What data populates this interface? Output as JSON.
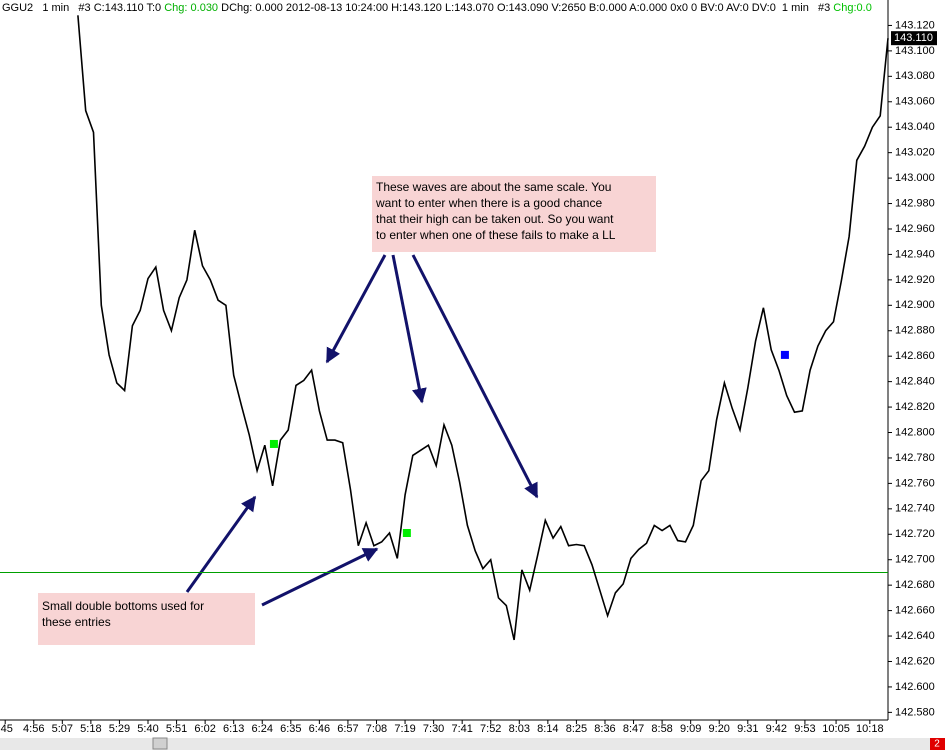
{
  "header": [
    {
      "text": "GGU2   1 min   #3 C:143.110 T:0 ",
      "color": "#000000"
    },
    {
      "text": "Chg: 0.030",
      "color": "#00b000"
    },
    {
      "text": " DChg: 0.000 2012-08-13 10:24:00 H:143.120 L:143.070 O:143.090 V:2650 B:0.000 A:0.000 0x0 0 BV:0 AV:0 DV:0  1 min   #3 ",
      "color": "#000000"
    },
    {
      "text": "Chg:0.0",
      "color": "#00c000"
    }
  ],
  "chart_data": {
    "type": "line",
    "x": [
      313,
      316,
      319,
      322,
      325,
      328,
      331,
      334,
      337,
      340,
      343,
      346,
      349,
      352,
      355,
      358,
      361,
      364,
      367,
      370,
      373,
      376,
      379,
      382,
      385,
      388,
      391,
      394,
      397,
      400,
      403,
      406,
      409,
      412,
      415,
      418,
      421,
      424,
      427,
      430,
      433,
      436,
      439,
      442,
      445,
      448,
      451,
      454,
      457,
      460,
      463,
      466,
      469,
      472,
      475,
      478,
      481,
      484,
      487,
      490,
      493,
      496,
      499,
      502,
      505,
      508,
      511,
      514,
      517,
      520,
      523,
      526,
      529,
      532,
      535,
      538,
      541,
      544,
      547,
      550,
      553,
      556,
      559,
      562,
      565,
      568,
      571,
      574,
      577,
      580,
      583,
      586,
      589,
      592,
      595,
      598,
      601,
      604,
      607,
      610,
      613,
      616,
      619,
      622,
      625
    ],
    "series": [
      {
        "color": "#000000",
        "values": [
          143.128,
          143.053,
          143.036,
          142.9,
          142.861,
          142.839,
          142.833,
          142.884,
          142.896,
          142.921,
          142.93,
          142.896,
          142.88,
          142.906,
          142.92,
          142.959,
          142.931,
          142.92,
          142.904,
          142.9,
          142.845,
          142.821,
          142.798,
          142.77,
          142.79,
          142.758,
          142.794,
          142.802,
          142.837,
          142.841,
          142.849,
          142.817,
          142.794,
          142.794,
          142.792,
          142.755,
          142.711,
          142.729,
          142.711,
          142.714,
          142.721,
          142.701,
          142.751,
          142.782,
          142.786,
          142.79,
          142.774,
          142.806,
          142.79,
          142.761,
          142.727,
          142.707,
          142.693,
          142.7,
          142.67,
          142.664,
          142.637,
          142.692,
          142.676,
          142.703,
          142.731,
          142.717,
          142.726,
          142.711,
          142.712,
          142.711,
          142.696,
          142.676,
          142.656,
          142.674,
          142.681,
          142.701,
          142.708,
          142.713,
          142.727,
          142.723,
          142.727,
          142.715,
          142.714,
          142.727,
          142.762,
          142.77,
          142.81,
          142.839,
          142.819,
          142.802,
          142.835,
          142.872,
          142.898,
          142.865,
          142.849,
          142.829,
          142.816,
          142.817,
          142.849,
          142.868,
          142.88,
          142.887,
          142.919,
          142.954,
          143.014,
          143.025,
          143.04,
          143.049,
          143.11
        ]
      }
    ],
    "markers": [
      {
        "x": 388.5,
        "y": 142.791,
        "color": "#00ee00"
      },
      {
        "x": 439.7,
        "y": 142.721,
        "color": "#00ee00"
      },
      {
        "x": 585.3,
        "y": 142.861,
        "color": "#0000ff"
      }
    ],
    "hline": {
      "value": 142.69,
      "color": "#00a000"
    },
    "last_price": {
      "value": 143.11,
      "label": "143.110"
    },
    "xlim": [
      283,
      625
    ],
    "ylim": [
      142.574,
      143.14
    ],
    "xticks": [
      {
        "value": 285,
        "label": ":45"
      },
      {
        "value": 296,
        "label": "4:56"
      },
      {
        "value": 307,
        "label": "5:07"
      },
      {
        "value": 318,
        "label": "5:18"
      },
      {
        "value": 329,
        "label": "5:29"
      },
      {
        "value": 340,
        "label": "5:40"
      },
      {
        "value": 351,
        "label": "5:51"
      },
      {
        "value": 362,
        "label": "6:02"
      },
      {
        "value": 373,
        "label": "6:13"
      },
      {
        "value": 384,
        "label": "6:24"
      },
      {
        "value": 395,
        "label": "6:35"
      },
      {
        "value": 406,
        "label": "6:46"
      },
      {
        "value": 417,
        "label": "6:57"
      },
      {
        "value": 428,
        "label": "7:08"
      },
      {
        "value": 439,
        "label": "7:19"
      },
      {
        "value": 450,
        "label": "7:30"
      },
      {
        "value": 461,
        "label": "7:41"
      },
      {
        "value": 472,
        "label": "7:52"
      },
      {
        "value": 483,
        "label": "8:03"
      },
      {
        "value": 494,
        "label": "8:14"
      },
      {
        "value": 505,
        "label": "8:25"
      },
      {
        "value": 516,
        "label": "8:36"
      },
      {
        "value": 527,
        "label": "8:47"
      },
      {
        "value": 538,
        "label": "8:58"
      },
      {
        "value": 549,
        "label": "9:09"
      },
      {
        "value": 560,
        "label": "9:20"
      },
      {
        "value": 571,
        "label": "9:31"
      },
      {
        "value": 582,
        "label": "9:42"
      },
      {
        "value": 593,
        "label": "9:53"
      },
      {
        "value": 605,
        "label": "10:05"
      },
      {
        "value": 618,
        "label": "10:18"
      }
    ],
    "yticks": [
      {
        "value": 142.58,
        "label": "142.580"
      },
      {
        "value": 142.6,
        "label": "142.600"
      },
      {
        "value": 142.62,
        "label": "142.620"
      },
      {
        "value": 142.64,
        "label": "142.640"
      },
      {
        "value": 142.66,
        "label": "142.660"
      },
      {
        "value": 142.68,
        "label": "142.680"
      },
      {
        "value": 142.7,
        "label": "142.700"
      },
      {
        "value": 142.72,
        "label": "142.720"
      },
      {
        "value": 142.74,
        "label": "142.740"
      },
      {
        "value": 142.76,
        "label": "142.760"
      },
      {
        "value": 142.78,
        "label": "142.780"
      },
      {
        "value": 142.8,
        "label": "142.800"
      },
      {
        "value": 142.82,
        "label": "142.820"
      },
      {
        "value": 142.84,
        "label": "142.840"
      },
      {
        "value": 142.86,
        "label": "142.860"
      },
      {
        "value": 142.88,
        "label": "142.880"
      },
      {
        "value": 142.9,
        "label": "142.900"
      },
      {
        "value": 142.92,
        "label": "142.920"
      },
      {
        "value": 142.94,
        "label": "142.940"
      },
      {
        "value": 142.96,
        "label": "142.960"
      },
      {
        "value": 142.98,
        "label": "142.980"
      },
      {
        "value": 143.0,
        "label": "143.000"
      },
      {
        "value": 143.02,
        "label": "143.020"
      },
      {
        "value": 143.04,
        "label": "143.040"
      },
      {
        "value": 143.06,
        "label": "143.060"
      },
      {
        "value": 143.08,
        "label": "143.080"
      },
      {
        "value": 143.1,
        "label": "143.100"
      },
      {
        "value": 143.12,
        "label": "143.120"
      }
    ],
    "annotations": [
      {
        "lines": [
          "These waves are about the same scale. You",
          "want to enter when there is a good chance",
          "that their high can be taken out. So you want",
          "to enter when one of these fails to make a LL"
        ]
      },
      {
        "lines": [
          "Small double bottoms used for",
          "these entries"
        ]
      }
    ]
  },
  "scroll_badge": "2"
}
